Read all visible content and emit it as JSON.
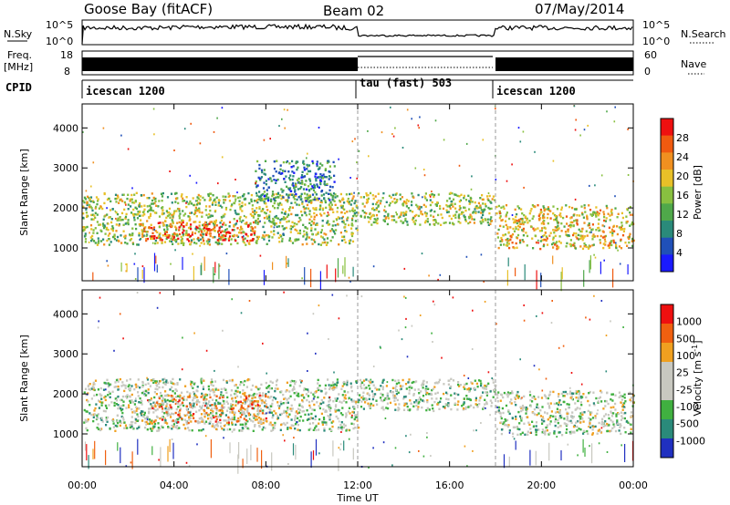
{
  "header": {
    "station": "Goose Bay (fitACF)",
    "beam": "Beam 02",
    "date": "07/May/2014"
  },
  "top_panels": {
    "nsky_label": "N.Sky",
    "nsky_ticks": [
      "10^5",
      "10^0"
    ],
    "nsearch_label": "N.Search",
    "nsearch_ticks": [
      "10^5",
      "10^0"
    ],
    "freq_label_1": "Freq.",
    "freq_label_2": "[MHz]",
    "freq_ticks": [
      "18",
      "8"
    ],
    "nave_label": "Nave",
    "nave_ticks": [
      "60",
      "0"
    ],
    "cpid_label": "CPID",
    "cpid_segments": [
      {
        "label": "icescan 1200",
        "start": 0,
        "end": 12
      },
      {
        "label": "tau (fast) 503",
        "start": 12,
        "end": 18
      },
      {
        "label": "icescan 1200",
        "start": 18,
        "end": 24
      }
    ]
  },
  "chart_data": [
    {
      "type": "heatmap",
      "name": "power",
      "ylabel": "Slant Range [km]",
      "ylim": [
        180,
        4600
      ],
      "xlim": [
        0,
        24
      ],
      "x_ticks": [
        0,
        4,
        8,
        12,
        16,
        20,
        24
      ],
      "y_ticks": [
        1000,
        2000,
        3000,
        4000
      ],
      "colorbar_label": "Power [dB]",
      "colorbar_ticks": [
        "28",
        "24",
        "20",
        "16",
        "12",
        "8",
        "4"
      ],
      "colors": [
        "#1a1aff",
        "#2050b8",
        "#2a8a7a",
        "#4fa84a",
        "#88c040",
        "#e8c028",
        "#f09020",
        "#f05a10",
        "#ee1010"
      ],
      "regions": [
        {
          "x": [
            0,
            12
          ],
          "y": [
            1100,
            2400
          ],
          "level": 4
        },
        {
          "x": [
            2.5,
            7.5
          ],
          "y": [
            1200,
            1700
          ],
          "level": 7
        },
        {
          "x": [
            7.5,
            11
          ],
          "y": [
            2200,
            3200
          ],
          "level": 2
        },
        {
          "x": [
            12,
            18
          ],
          "y": [
            1600,
            2400
          ],
          "level": 4
        },
        {
          "x": [
            18,
            24
          ],
          "y": [
            1000,
            2100
          ],
          "level": 5
        }
      ]
    },
    {
      "type": "heatmap",
      "name": "velocity",
      "ylabel": "Slant Range [km]",
      "ylim": [
        180,
        4600
      ],
      "xlim": [
        0,
        24
      ],
      "x_ticks": [
        0,
        4,
        8,
        12,
        16,
        20,
        24
      ],
      "y_ticks": [
        1000,
        2000,
        3000,
        4000
      ],
      "xlabel": "Time UT",
      "x_tick_labels": [
        "00:00",
        "04:00",
        "08:00",
        "12:00",
        "16:00",
        "20:00",
        "00:00"
      ],
      "colorbar_label": "Velocity [m s",
      "colorbar_label_sup": "-1",
      "colorbar_label_end": "]",
      "colorbar_ticks": [
        "1000",
        "500",
        "100",
        "25",
        "-25",
        "-100",
        "-500",
        "-1000"
      ],
      "colors": [
        "#2030c0",
        "#2a8a7a",
        "#40b040",
        "#c8c8c0",
        "#c8c8c0",
        "#f0a020",
        "#f06010",
        "#ee1010"
      ],
      "regions": [
        {
          "x": [
            0,
            12
          ],
          "y": [
            1100,
            2400
          ],
          "level": 3
        },
        {
          "x": [
            3,
            8
          ],
          "y": [
            1300,
            2000
          ],
          "level": 5
        },
        {
          "x": [
            12,
            18
          ],
          "y": [
            1600,
            2400
          ],
          "level": 3
        },
        {
          "x": [
            18,
            24
          ],
          "y": [
            1000,
            2100
          ],
          "level": 3
        }
      ]
    }
  ]
}
